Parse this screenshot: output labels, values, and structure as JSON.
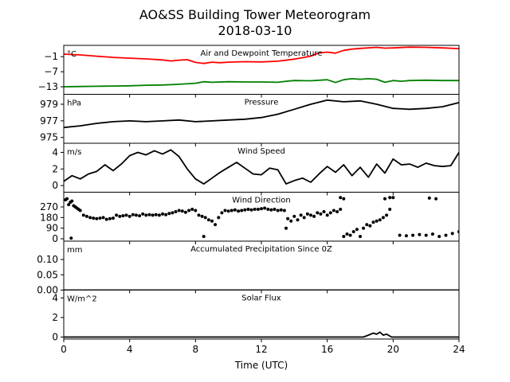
{
  "figure": {
    "title": "AO&SS Building Tower Meteorogram",
    "subtitle": "2018-03-10"
  },
  "chart_data": [
    {
      "type": "line",
      "title": "Air and Dewpoint Temperature",
      "unit": "°C",
      "xlim": [
        0,
        24
      ],
      "ylim": [
        -16,
        3.5
      ],
      "yticks": [
        -13,
        -7,
        -1
      ],
      "series": [
        {
          "color": "#ff0000",
          "x": [
            0,
            1,
            2,
            3,
            4,
            5,
            6,
            6.5,
            7,
            7.5,
            8,
            8.5,
            9,
            9.5,
            10,
            11,
            12,
            13,
            14,
            15,
            15.5,
            16,
            16.5,
            17,
            17.5,
            18,
            19,
            19.5,
            20,
            21,
            22,
            23,
            24
          ],
          "y": [
            0,
            -0.3,
            -0.8,
            -1.3,
            -1.6,
            -1.9,
            -2.3,
            -2.7,
            -2.4,
            -2.2,
            -3.3,
            -3.7,
            -3.2,
            -3.4,
            -3.2,
            -3.0,
            -3.1,
            -2.8,
            -2.0,
            -0.8,
            0.5,
            0.8,
            0.4,
            1.5,
            2.0,
            2.3,
            2.7,
            2.4,
            2.5,
            2.8,
            2.7,
            2.5,
            2.2
          ]
        },
        {
          "color": "#008000",
          "x": [
            0,
            1,
            2,
            3,
            4,
            5,
            6,
            7,
            8,
            8.5,
            9,
            10,
            11,
            12,
            13,
            13.5,
            14,
            15,
            16,
            16.5,
            17,
            17.5,
            18,
            18.5,
            19,
            19.5,
            20,
            20.5,
            21,
            22,
            23,
            24
          ],
          "y": [
            -13,
            -12.9,
            -12.8,
            -12.7,
            -12.6,
            -12.4,
            -12.3,
            -12.0,
            -11.6,
            -11.0,
            -11.2,
            -11.0,
            -11.1,
            -11.1,
            -11.2,
            -10.8,
            -10.5,
            -10.6,
            -10.2,
            -11.3,
            -10.2,
            -9.8,
            -10.0,
            -9.8,
            -10.0,
            -11.2,
            -10.5,
            -10.8,
            -10.5,
            -10.4,
            -10.5,
            -10.5
          ]
        }
      ]
    },
    {
      "type": "line",
      "title": "Pressure",
      "unit": "hPa",
      "xlim": [
        0,
        24
      ],
      "ylim": [
        974.3,
        980.2
      ],
      "yticks": [
        975,
        977,
        979
      ],
      "series": [
        {
          "color": "#000000",
          "x": [
            0,
            1,
            2,
            3,
            4,
            5,
            6,
            7,
            8,
            9,
            10,
            11,
            12,
            13,
            14,
            15,
            16,
            17,
            18,
            19,
            20,
            21,
            22,
            23,
            24
          ],
          "y": [
            976.2,
            976.4,
            976.7,
            976.9,
            977.0,
            976.9,
            977.0,
            977.1,
            976.9,
            977.0,
            977.1,
            977.2,
            977.4,
            977.8,
            978.4,
            979.0,
            979.5,
            979.3,
            979.4,
            979.0,
            978.5,
            978.4,
            978.5,
            978.7,
            979.2
          ]
        }
      ]
    },
    {
      "type": "line",
      "title": "Wind Speed",
      "unit": "m/s",
      "xlim": [
        0,
        24
      ],
      "ylim": [
        -0.8,
        5.1
      ],
      "yticks": [
        0,
        2,
        4
      ],
      "series": [
        {
          "color": "#000000",
          "x": [
            0,
            0.5,
            1,
            1.5,
            2,
            2.5,
            3,
            3.5,
            4,
            4.5,
            5,
            5.5,
            6,
            6.5,
            7,
            7.5,
            8,
            8.5,
            9,
            9.5,
            10,
            10.5,
            11,
            11.5,
            12,
            12.5,
            13,
            13.5,
            14,
            14.5,
            15,
            15.5,
            16,
            16.5,
            17,
            17.5,
            18,
            18.5,
            19,
            19.5,
            20,
            20.5,
            21,
            21.5,
            22,
            22.5,
            23,
            23.5,
            24
          ],
          "y": [
            0.5,
            1.2,
            0.8,
            1.4,
            1.7,
            2.5,
            1.8,
            2.6,
            3.6,
            4.0,
            3.7,
            4.2,
            3.8,
            4.3,
            3.5,
            2.0,
            0.8,
            0.2,
            0.9,
            1.6,
            2.2,
            2.8,
            2.1,
            1.4,
            1.3,
            2.1,
            1.9,
            0.2,
            0.6,
            0.9,
            0.4,
            1.4,
            2.3,
            1.6,
            2.5,
            1.2,
            2.2,
            1.0,
            2.6,
            1.5,
            3.2,
            2.5,
            2.6,
            2.2,
            2.7,
            2.4,
            2.3,
            2.4,
            4.0
          ]
        }
      ]
    },
    {
      "type": "scatter",
      "title": "Wind Direction",
      "unit": "",
      "xlim": [
        0,
        24
      ],
      "ylim": [
        -20,
        395
      ],
      "yticks": [
        0,
        90,
        180,
        270
      ],
      "series": [
        {
          "color": "#000000",
          "x": [
            0.1,
            0.2,
            0.3,
            0.4,
            0.5,
            0.6,
            0.7,
            0.8,
            0.9,
            1.0,
            1.2,
            1.4,
            1.6,
            1.8,
            2.0,
            2.2,
            2.4,
            2.6,
            2.8,
            3.0,
            3.2,
            3.4,
            3.6,
            3.8,
            4.0,
            4.2,
            4.4,
            4.6,
            4.8,
            5.0,
            5.2,
            5.4,
            5.6,
            5.8,
            6.0,
            6.2,
            6.4,
            6.6,
            6.8,
            7.0,
            7.2,
            7.4,
            7.6,
            7.8,
            8.0,
            8.2,
            8.4,
            8.6,
            8.8,
            9.0,
            9.2,
            9.4,
            9.6,
            9.8,
            10.0,
            10.2,
            10.4,
            10.6,
            10.8,
            11.0,
            11.2,
            11.4,
            11.6,
            11.8,
            12.0,
            12.2,
            12.4,
            12.6,
            12.8,
            13.0,
            13.2,
            13.4,
            13.6,
            13.8,
            14.0,
            14.2,
            14.4,
            14.6,
            14.8,
            15.0,
            15.2,
            15.4,
            15.6,
            15.8,
            16.0,
            16.2,
            16.4,
            16.6,
            16.8,
            17.0,
            17.2,
            17.4,
            17.6,
            17.8,
            18.0,
            18.2,
            18.4,
            18.6,
            18.8,
            19.0,
            19.2,
            19.4,
            19.6,
            19.8,
            20.0,
            20.4,
            20.8,
            21.2,
            21.6,
            22.0,
            22.4,
            22.8,
            23.2,
            23.6,
            24.0,
            0.45,
            8.5,
            13.5,
            16.8,
            17.0,
            19.5,
            19.8,
            22.2,
            22.6
          ],
          "y": [
            330,
            340,
            290,
            310,
            320,
            280,
            270,
            260,
            250,
            240,
            200,
            190,
            180,
            175,
            170,
            175,
            180,
            165,
            170,
            175,
            200,
            190,
            195,
            200,
            190,
            205,
            200,
            195,
            210,
            200,
            205,
            200,
            205,
            200,
            210,
            205,
            215,
            220,
            230,
            240,
            235,
            225,
            240,
            250,
            240,
            200,
            190,
            180,
            160,
            150,
            120,
            180,
            220,
            240,
            235,
            240,
            245,
            235,
            240,
            245,
            250,
            245,
            250,
            250,
            255,
            260,
            250,
            245,
            250,
            240,
            245,
            240,
            170,
            150,
            190,
            160,
            200,
            180,
            210,
            200,
            190,
            220,
            210,
            230,
            200,
            220,
            240,
            230,
            250,
            20,
            40,
            30,
            60,
            80,
            20,
            90,
            120,
            110,
            140,
            150,
            160,
            180,
            200,
            250,
            350,
            30,
            25,
            30,
            35,
            30,
            40,
            20,
            30,
            45,
            60,
            5,
            20,
            90,
            350,
            340,
            340,
            350,
            345,
            340
          ]
        }
      ]
    },
    {
      "type": "line",
      "title": "Accumulated Precipitation Since 0Z",
      "unit": "mm",
      "xlim": [
        0,
        24
      ],
      "ylim": [
        0,
        0.16
      ],
      "yticks": [
        0.0,
        0.05,
        0.1
      ],
      "ytick_labels": [
        "0.00",
        "0.05",
        "0.10"
      ],
      "series": [
        {
          "color": "#000000",
          "x": [
            0,
            24
          ],
          "y": [
            0,
            0
          ]
        }
      ]
    },
    {
      "type": "line",
      "title": "Solar Flux",
      "unit": "W/m^2",
      "xlim": [
        0,
        24
      ],
      "ylim": [
        -0.2,
        4.8
      ],
      "yticks": [
        0,
        2,
        4
      ],
      "xticks": [
        0,
        4,
        8,
        12,
        16,
        20,
        24
      ],
      "xlabel": "Time (UTC)",
      "series": [
        {
          "color": "#000000",
          "x": [
            0,
            18.2,
            18.5,
            18.8,
            19.0,
            19.2,
            19.4,
            19.6,
            19.9,
            24
          ],
          "y": [
            0,
            0,
            0.2,
            0.4,
            0.3,
            0.5,
            0.2,
            0.3,
            0,
            0
          ]
        }
      ]
    }
  ]
}
